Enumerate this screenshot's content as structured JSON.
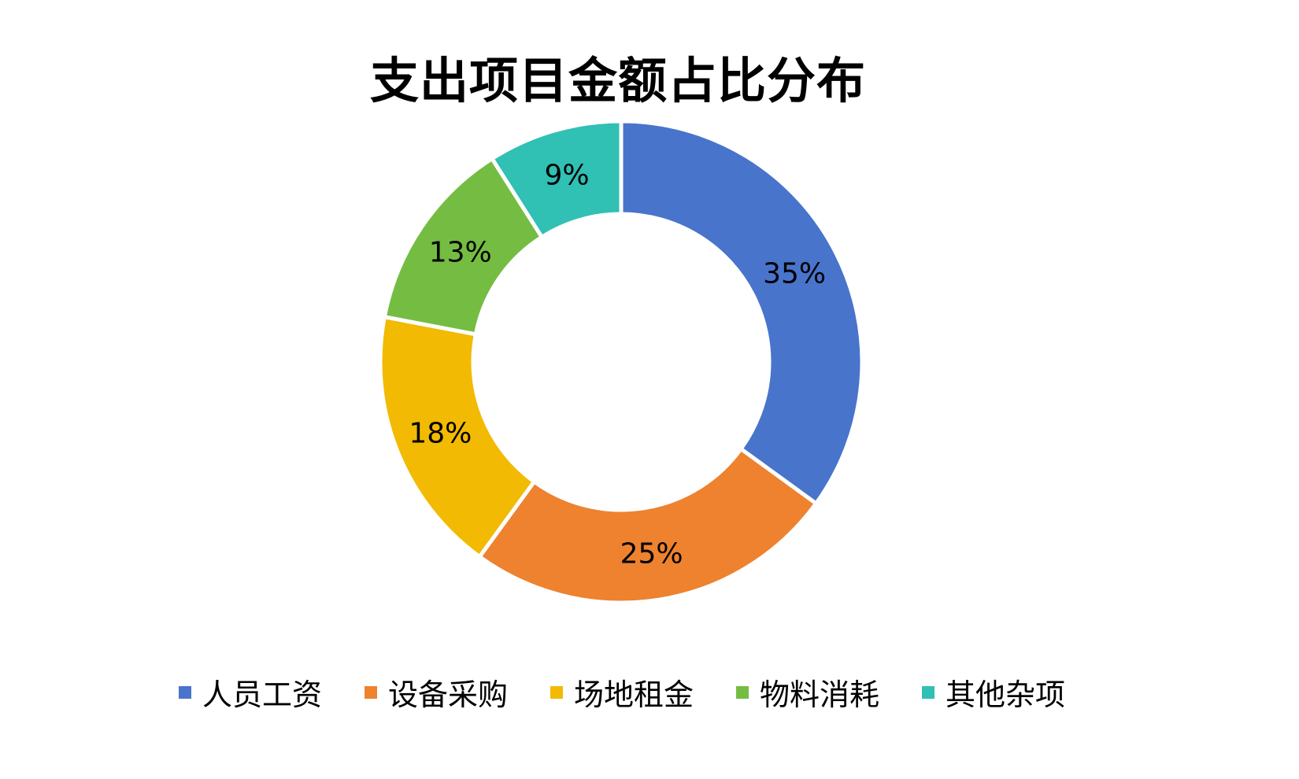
{
  "chart_data": {
    "type": "pie",
    "variant": "donut",
    "title": "支出项目金额占比分布",
    "categories": [
      "人员工资",
      "设备采购",
      "场地租金",
      "物料消耗",
      "其他杂项"
    ],
    "values": [
      35,
      25,
      18,
      13,
      9
    ],
    "labels": [
      "35%",
      "25%",
      "18%",
      "13%",
      "9%"
    ],
    "colors": [
      "#4874CB",
      "#EE822F",
      "#F2BA02",
      "#75BD42",
      "#30C0B4"
    ],
    "legend_position": "bottom"
  },
  "title": "支出项目金额占比分布",
  "legend": [
    {
      "label": "人员工资",
      "color": "#4874CB"
    },
    {
      "label": "设备采购",
      "color": "#EE822F"
    },
    {
      "label": "场地租金",
      "color": "#F2BA02"
    },
    {
      "label": "物料消耗",
      "color": "#75BD42"
    },
    {
      "label": "其他杂项",
      "color": "#30C0B4"
    }
  ]
}
